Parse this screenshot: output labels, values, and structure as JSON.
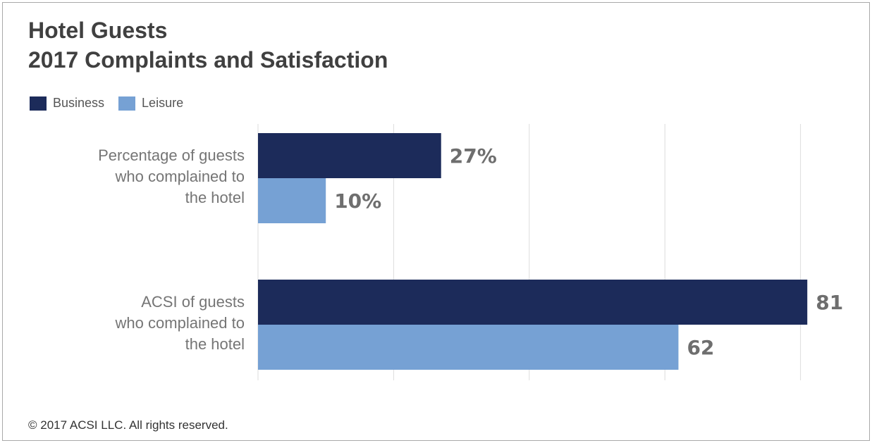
{
  "header": {
    "title_line1": "Hotel Guests",
    "title_line2": "2017 Complaints and Satisfaction"
  },
  "legend": [
    {
      "label": "Business",
      "color": "#1c2b5a"
    },
    {
      "label": "Leisure",
      "color": "#76a1d4"
    }
  ],
  "chart_data": {
    "type": "bar",
    "orientation": "horizontal",
    "categories": [
      [
        "Percentage of guests",
        "who complained to",
        "the hotel"
      ],
      [
        "ACSI of guests",
        "who complained to",
        "the hotel"
      ]
    ],
    "series": [
      {
        "name": "Business",
        "color": "#1c2b5a",
        "values": [
          27,
          81
        ],
        "labels": [
          "27%",
          "81"
        ]
      },
      {
        "name": "Leisure",
        "color": "#76a1d4",
        "values": [
          10,
          62
        ],
        "labels": [
          "10%",
          "62"
        ]
      }
    ],
    "xlim": [
      0,
      80
    ],
    "grid": true,
    "legend_position": "top-left",
    "label_color": "#6e6e6e",
    "grid_color": "#dddddd"
  },
  "footer": {
    "copyright": "© 2017 ACSI LLC. All rights reserved."
  }
}
